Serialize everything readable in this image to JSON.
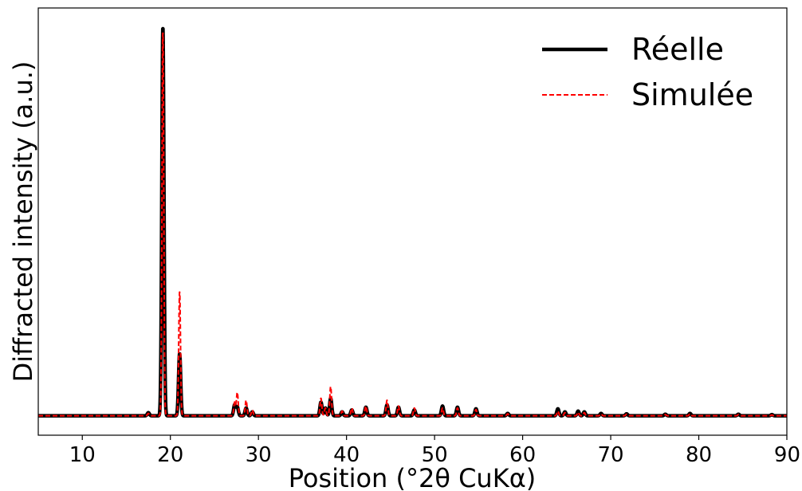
{
  "chart_data": {
    "type": "line",
    "xlabel": "Position (°2θ CuKα)",
    "ylabel": "Diffracted intensity (a.u.)",
    "xlim": [
      5,
      90
    ],
    "ylim": [
      -0.05,
      1.05
    ],
    "xticks": [
      10,
      20,
      30,
      40,
      50,
      60,
      70,
      80,
      90
    ],
    "yticks_shown": false,
    "grid": false,
    "legend_position": "top-right",
    "series": [
      {
        "name": "Réelle",
        "color": "#000000",
        "style": "solid",
        "peaks": [
          [
            17.5,
            0.008
          ],
          [
            19.15,
            1.0
          ],
          [
            21.05,
            0.16
          ],
          [
            27.3,
            0.028
          ],
          [
            27.6,
            0.022
          ],
          [
            28.6,
            0.02
          ],
          [
            29.3,
            0.01
          ],
          [
            37.1,
            0.035
          ],
          [
            37.6,
            0.02
          ],
          [
            38.2,
            0.045
          ],
          [
            39.5,
            0.01
          ],
          [
            40.6,
            0.015
          ],
          [
            42.2,
            0.022
          ],
          [
            44.6,
            0.028
          ],
          [
            45.9,
            0.022
          ],
          [
            47.7,
            0.015
          ],
          [
            50.9,
            0.025
          ],
          [
            52.6,
            0.022
          ],
          [
            54.7,
            0.018
          ],
          [
            58.3,
            0.006
          ],
          [
            64.0,
            0.018
          ],
          [
            64.8,
            0.01
          ],
          [
            66.3,
            0.012
          ],
          [
            67.0,
            0.01
          ],
          [
            68.9,
            0.006
          ],
          [
            71.8,
            0.005
          ],
          [
            76.2,
            0.004
          ],
          [
            79.0,
            0.006
          ],
          [
            84.5,
            0.004
          ],
          [
            88.3,
            0.003
          ]
        ]
      },
      {
        "name": "Simulée",
        "color": "#ff0000",
        "style": "dashed",
        "peaks": [
          [
            17.5,
            0.006
          ],
          [
            19.15,
            0.99
          ],
          [
            21.05,
            0.32
          ],
          [
            27.3,
            0.035
          ],
          [
            27.6,
            0.06
          ],
          [
            28.6,
            0.04
          ],
          [
            29.3,
            0.015
          ],
          [
            37.1,
            0.045
          ],
          [
            37.6,
            0.02
          ],
          [
            38.2,
            0.075
          ],
          [
            39.5,
            0.012
          ],
          [
            40.6,
            0.02
          ],
          [
            42.2,
            0.025
          ],
          [
            44.6,
            0.04
          ],
          [
            45.9,
            0.025
          ],
          [
            47.7,
            0.02
          ],
          [
            50.9,
            0.02
          ],
          [
            52.6,
            0.02
          ],
          [
            54.7,
            0.016
          ],
          [
            58.3,
            0.005
          ],
          [
            64.0,
            0.012
          ],
          [
            64.8,
            0.008
          ],
          [
            66.3,
            0.009
          ],
          [
            67.0,
            0.008
          ],
          [
            68.9,
            0.005
          ],
          [
            71.8,
            0.004
          ],
          [
            76.2,
            0.003
          ],
          [
            79.0,
            0.005
          ],
          [
            84.5,
            0.003
          ],
          [
            88.3,
            0.002
          ]
        ]
      }
    ]
  }
}
